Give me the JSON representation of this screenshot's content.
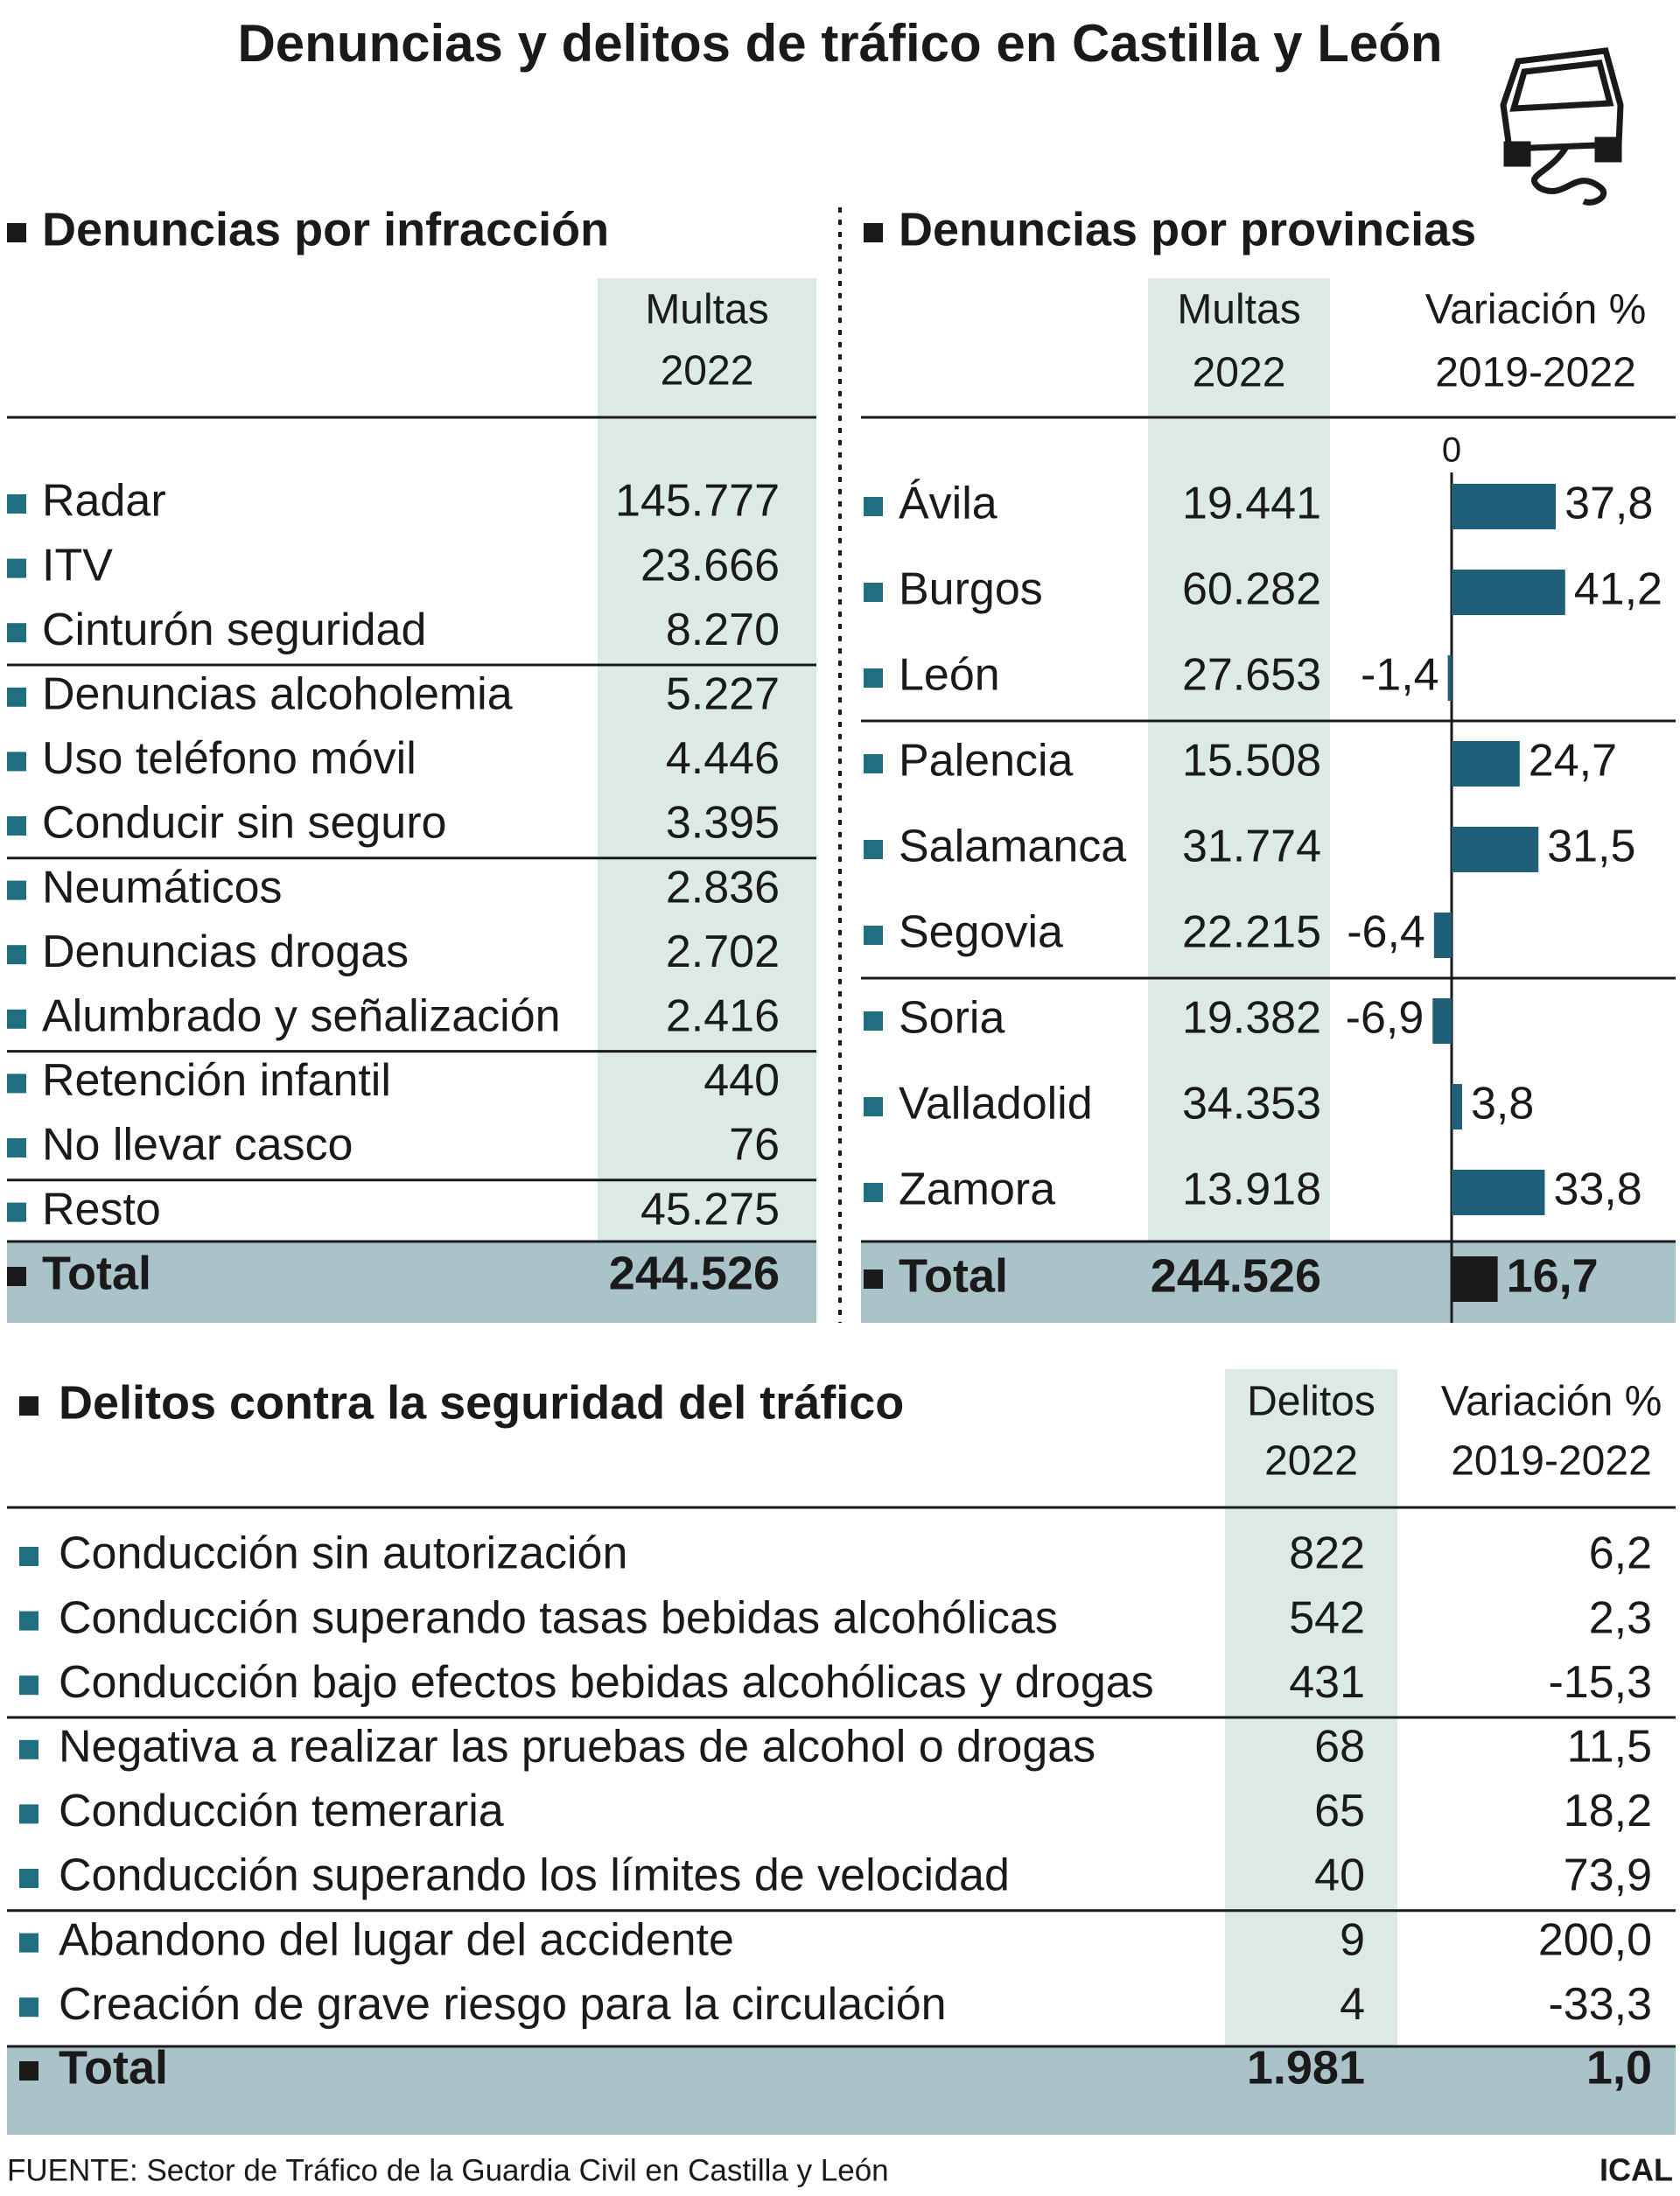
{
  "title": "Denuncias y delitos de tráfico en Castilla y León",
  "infracciones": {
    "title": "Denuncias por infracción",
    "column_header": [
      "Multas",
      "2022"
    ],
    "rows": [
      [
        "Radar",
        "145.777"
      ],
      [
        "ITV",
        "23.666"
      ],
      [
        "Cinturón seguridad",
        "8.270"
      ],
      [
        "Denuncias alcoholemia",
        "5.227"
      ],
      [
        "Uso teléfono móvil",
        "4.446"
      ],
      [
        "Conducir sin seguro",
        "3.395"
      ],
      [
        "Neumáticos",
        "2.836"
      ],
      [
        "Denuncias drogas",
        "2.702"
      ],
      [
        "Alumbrado y señalización",
        "2.416"
      ],
      [
        "Retención infantil",
        "440"
      ],
      [
        "No llevar casco",
        "76"
      ],
      [
        "Resto",
        "45.275"
      ]
    ],
    "total": [
      "Total",
      "244.526"
    ]
  },
  "provincias": {
    "title": "Denuncias por provincias",
    "column_headers": [
      [
        "Multas",
        "2022"
      ],
      [
        "Variación %",
        "2019-2022"
      ]
    ],
    "rows": [
      [
        "Ávila",
        "19.441"
      ],
      [
        "Burgos",
        "60.282"
      ],
      [
        "León",
        "27.653"
      ],
      [
        "Palencia",
        "15.508"
      ],
      [
        "Salamanca",
        "31.774"
      ],
      [
        "Segovia",
        "22.215"
      ],
      [
        "Soria",
        "19.382"
      ],
      [
        "Valladolid",
        "34.353"
      ],
      [
        "Zamora",
        "13.918"
      ]
    ],
    "variation": {
      "zero_tick": 0,
      "values": [
        37.8,
        41.2,
        -1.4,
        24.7,
        31.5,
        -6.4,
        -6.9,
        3.8,
        33.8
      ],
      "value_labels": [
        "37,8",
        "41,2",
        "-1,4",
        "24,7",
        "31,5",
        "-6,4",
        "-6,9",
        "3,8",
        "33,8"
      ],
      "color": "#1f5f7a"
    },
    "total": {
      "label": "Total",
      "multas": "244.526",
      "variation": 16.7,
      "variation_label": "16,7",
      "color": "#1a1a1a"
    }
  },
  "delitos": {
    "title": "Delitos contra la seguridad del tráfico",
    "column_headers": [
      [
        "Delitos",
        "2022"
      ],
      [
        "Variación %",
        "2019-2022"
      ]
    ],
    "rows": [
      [
        "Conducción sin autorización",
        "822",
        "6,2"
      ],
      [
        "Conducción superando tasas bebidas alcohólicas",
        "542",
        "2,3"
      ],
      [
        "Conducción bajo efectos bebidas alcohólicas y drogas",
        "431",
        "-15,3"
      ],
      [
        "Negativa a realizar las pruebas de alcohol o drogas",
        "68",
        "11,5"
      ],
      [
        "Conducción temeraria",
        "65",
        "18,2"
      ],
      [
        "Conducción superando los límites de velocidad",
        "40",
        "73,9"
      ],
      [
        "Abandono del lugar del accidente",
        "9",
        "200,0"
      ],
      [
        "Creación de grave riesgo para la circulación",
        "4",
        "-33,3"
      ]
    ],
    "total": [
      "Total",
      "1.981",
      "1,0"
    ]
  },
  "source": "FUENTE: Sector de Tráfico de la Guardia Civil en Castilla y León",
  "credit": "ICAL"
}
